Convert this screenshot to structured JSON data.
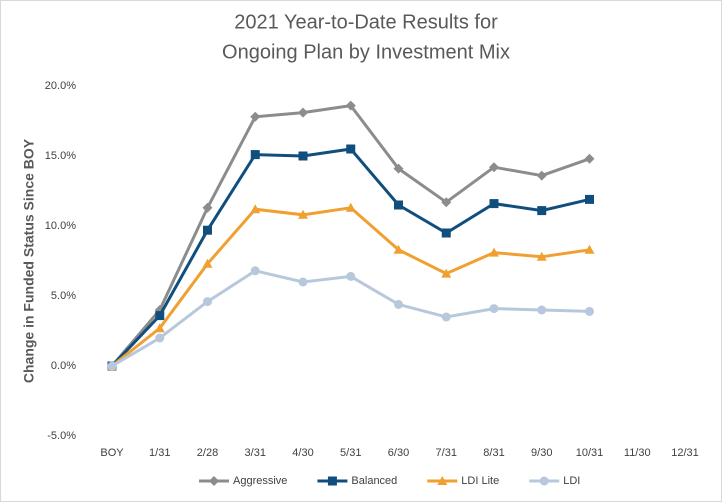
{
  "chart_data": {
    "type": "line",
    "title": [
      "2021 Year-to-Date Results for",
      "Ongoing Plan by Investment Mix"
    ],
    "y_label": "Change in Funded Status Since BOY",
    "categories": [
      "BOY",
      "1/31",
      "2/28",
      "3/31",
      "4/30",
      "5/31",
      "6/30",
      "7/31",
      "8/31",
      "9/30",
      "10/31",
      "11/30",
      "12/31"
    ],
    "series": [
      {
        "name": "Aggressive",
        "color": "#8c8c8c",
        "marker": "diamond",
        "values": [
          0,
          4.0,
          11.3,
          17.8,
          18.1,
          18.6,
          14.1,
          11.7,
          14.2,
          13.6,
          14.8,
          null,
          null
        ]
      },
      {
        "name": "Balanced",
        "color": "#104e7e",
        "marker": "square",
        "values": [
          0,
          3.6,
          9.7,
          15.1,
          15.0,
          15.5,
          11.5,
          9.5,
          11.6,
          11.1,
          11.9,
          null,
          null
        ]
      },
      {
        "name": "LDI Lite",
        "color": "#f0a030",
        "marker": "triangle",
        "values": [
          0,
          2.7,
          7.3,
          11.2,
          10.8,
          11.3,
          8.3,
          6.6,
          8.1,
          7.8,
          8.3,
          null,
          null
        ]
      },
      {
        "name": "LDI",
        "color": "#b8c8dc",
        "marker": "circle",
        "values": [
          0,
          2.0,
          4.6,
          6.8,
          6.0,
          6.4,
          4.4,
          3.5,
          4.1,
          4.0,
          3.9,
          null,
          null
        ]
      }
    ],
    "ylim": [
      -5,
      20
    ],
    "yticks": [
      {
        "value": -5,
        "label": "-5.0%"
      },
      {
        "value": 0,
        "label": "0.0%"
      },
      {
        "value": 5,
        "label": "5.0%"
      },
      {
        "value": 10,
        "label": "10.0%"
      },
      {
        "value": 15,
        "label": "15.0%"
      },
      {
        "value": 20,
        "label": "20.0%"
      }
    ],
    "grid": false,
    "legend": "bottom"
  }
}
